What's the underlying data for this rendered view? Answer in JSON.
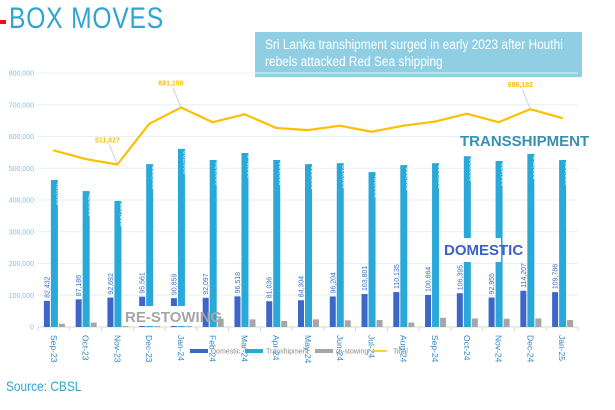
{
  "header": {
    "title": "BOX MOVES",
    "callout": "Sri Lanka transhipment surged in early 2023 after Houthi rebels attacked Red Sea shipping",
    "callout_line1": "Sri Lanka transhipment surged in early 2023 after Houthi",
    "callout_line2": "rebels attacked Red Sea shipping"
  },
  "footer": {
    "source": "Source: CBSL"
  },
  "colors": {
    "domestic": "#3c67c9",
    "transhipment": "#2aa8d8",
    "restowing": "#a6a6a6",
    "total": "#ffbf00",
    "title": "#2ea6cf",
    "callout_bg": "#90cfe3",
    "transhipment_annot": "#3a8fb0",
    "domestic_annot": "#3b62c9",
    "restowing_annot": "#a6a6a6"
  },
  "chart_data": {
    "type": "bar",
    "title": "BOX MOVES",
    "xlabel": "",
    "ylabel": "",
    "ylim": [
      0,
      800000
    ],
    "yticks": [
      0,
      100000,
      200000,
      300000,
      400000,
      500000,
      600000,
      700000,
      800000
    ],
    "ytick_labels": [
      "0",
      "100,000",
      "200,000",
      "300,000",
      "400,000",
      "500,000",
      "600,000",
      "700,000",
      "800,000"
    ],
    "grid": true,
    "legend_position": "bottom",
    "categories": [
      "Sep-23",
      "Oct-23",
      "Nov-23",
      "Dec-23",
      "Jan-24",
      "Feb-24",
      "Mar-24",
      "Apr-24",
      "May-24",
      "Jun-24",
      "Jul-24",
      "Aug-24",
      "Sep-24",
      "Oct-24",
      "Nov-24",
      "Dec-24",
      "Jan-25"
    ],
    "series": [
      {
        "name": "Domestic",
        "kind": "bar",
        "values": [
          82432,
          87186,
          92692,
          95561,
          90859,
          92097,
          96518,
          81036,
          84304,
          96204,
          103801,
          110135,
          100864,
          106395,
          92955,
          114207,
          109786
        ],
        "labels": [
          "82,432",
          "87,186",
          "92,692",
          "95,561",
          "90,859",
          "92,097",
          "96,518",
          "81,036",
          "84,304",
          "96,204",
          "103,801",
          "110,135",
          "100,864",
          "106,395",
          "92,955",
          "114,207",
          "109,786"
        ]
      },
      {
        "name": "Transhipment",
        "kind": "bar",
        "values": [
          463000,
          428000,
          397000,
          513000,
          561000,
          526000,
          548000,
          526000,
          513000,
          516000,
          488000,
          510000,
          516000,
          538000,
          523000,
          545000,
          526000
        ],
        "labels": [
          "463,000",
          "428,000",
          "397,000",
          "513,000",
          "561,000",
          "526,000",
          "548,000",
          "526,000",
          "513,000",
          "516,000",
          "488,000",
          "510,000",
          "516,000",
          "538,000",
          "523,000",
          "545,000",
          "526,000"
        ]
      },
      {
        "name": "re-stowing",
        "kind": "bar",
        "values": [
          10000,
          14000,
          8000,
          9000,
          9000,
          26000,
          24000,
          19000,
          24000,
          21000,
          22000,
          14000,
          29000,
          27000,
          26000,
          27000,
          22000
        ]
      },
      {
        "name": "Total",
        "kind": "line",
        "values": [
          556000,
          529000,
          511827,
          640000,
          691150,
          645000,
          670000,
          627000,
          620000,
          634000,
          615000,
          634000,
          647000,
          672000,
          645000,
          686182,
          658000
        ],
        "point_labels": [
          {
            "index": 2,
            "text": "511,827"
          },
          {
            "index": 4,
            "text": "691,150"
          },
          {
            "index": 15,
            "text": "686,182"
          }
        ]
      }
    ],
    "annotations": [
      {
        "text": "TRANSSHIPMENT",
        "series": "Transhipment"
      },
      {
        "text": "DOMESTIC",
        "series": "Domestic"
      },
      {
        "text": "RE-STOWING",
        "series": "re-stowing"
      }
    ]
  }
}
